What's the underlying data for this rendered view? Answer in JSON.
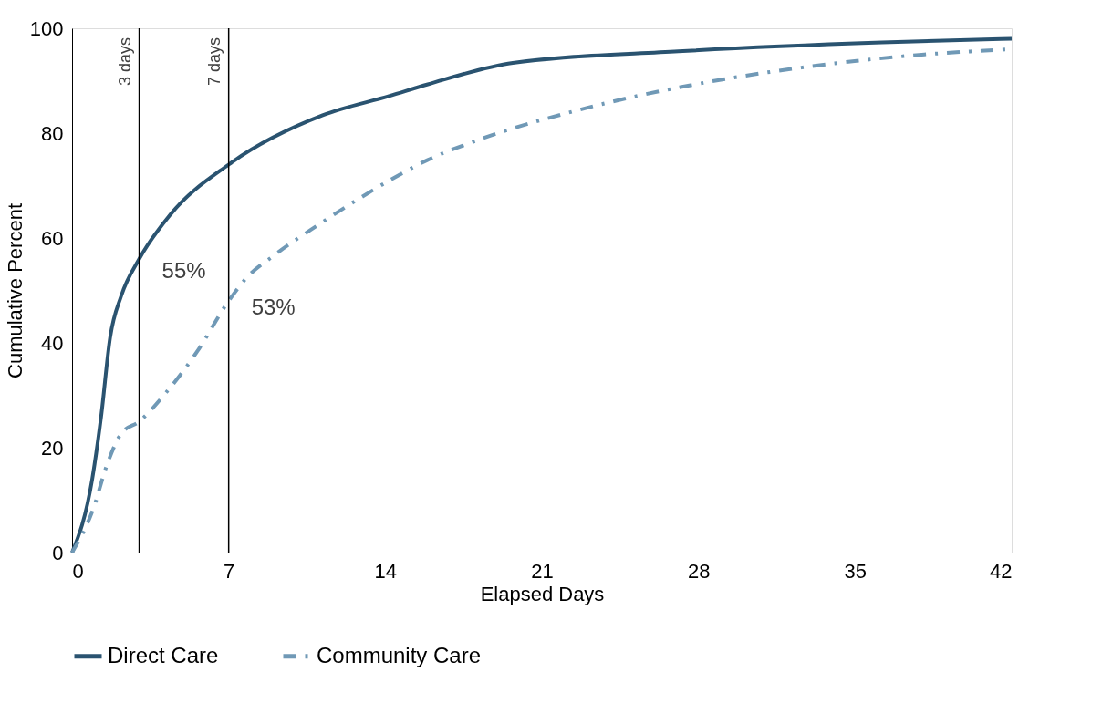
{
  "chart_data": {
    "type": "line",
    "xlabel": "Elapsed Days",
    "ylabel": "Cumulative Percent",
    "xlim": [
      0,
      42
    ],
    "xticks": [
      0,
      7,
      14,
      21,
      28,
      35,
      42
    ],
    "ylim": [
      0,
      100
    ],
    "yticks": [
      0,
      20,
      40,
      60,
      80,
      100
    ],
    "grid": false,
    "legend": "bottom",
    "series": [
      {
        "name": "Direct Care",
        "color": "#2a5370",
        "line_style": "solid",
        "x": [
          0,
          0.9,
          1.3,
          1.7,
          2.2,
          3,
          4.4,
          7,
          11.2,
          14.2,
          15.9,
          19.7,
          27.1,
          36.2,
          42
        ],
        "values": [
          0,
          14,
          26,
          41,
          49,
          56,
          64.5,
          74,
          83.4,
          87.1,
          89.3,
          93.4,
          95.6,
          97.3,
          98
        ]
      },
      {
        "name": "Community Care",
        "color": "#7099b6",
        "line_style": "dashed",
        "x": [
          0,
          1,
          1.5,
          2.2,
          3,
          4.2,
          5.6,
          7,
          7.8,
          9,
          11,
          12.9,
          14.2,
          15.9,
          17.9,
          23,
          28.5,
          32.6,
          38.1,
          42
        ],
        "values": [
          0,
          9,
          16,
          22.7,
          25,
          30.5,
          38.4,
          48,
          52.4,
          56.6,
          62.5,
          67.7,
          71,
          74.9,
          78.3,
          84.8,
          89.8,
          92.5,
          95,
          96
        ]
      }
    ],
    "ref_lines": [
      {
        "axis": "x",
        "value": 3,
        "label": "3 days",
        "color": "#000000"
      },
      {
        "axis": "x",
        "value": 7,
        "label": "7 days",
        "color": "#000000"
      }
    ],
    "annotations": [
      {
        "text": "55%",
        "x": 3,
        "y": 55
      },
      {
        "text": "53%",
        "x": 7,
        "y": 48
      }
    ]
  }
}
